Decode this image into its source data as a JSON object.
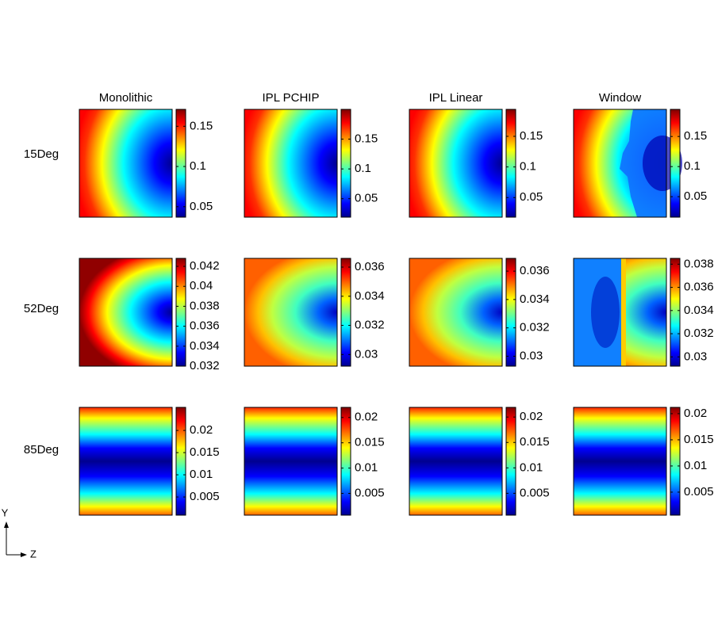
{
  "columns": [
    "Monolithic",
    "IPL PCHIP",
    "IPL Linear",
    "Window"
  ],
  "rows": [
    {
      "label": "15Deg",
      "colorbars": [
        {
          "clim": [
            0.037,
            0.171
          ],
          "ticks": [
            0.05,
            0.1,
            0.15
          ]
        },
        {
          "clim": [
            0.019,
            0.2
          ],
          "ticks": [
            0.05,
            0.1,
            0.15
          ]
        },
        {
          "clim": [
            0.018,
            0.194
          ],
          "ticks": [
            0.05,
            0.1,
            0.15
          ]
        },
        {
          "clim": [
            0.016,
            0.195
          ],
          "ticks": [
            0.05,
            0.1,
            0.15
          ]
        }
      ]
    },
    {
      "label": "52Deg",
      "colorbars": [
        {
          "clim": [
            0.032,
            0.0428
          ],
          "ticks": [
            0.032,
            0.034,
            0.036,
            0.038,
            0.04,
            0.042
          ]
        },
        {
          "clim": [
            0.0292,
            0.0366
          ],
          "ticks": [
            0.03,
            0.032,
            0.034,
            0.036
          ]
        },
        {
          "clim": [
            0.0293,
            0.0369
          ],
          "ticks": [
            0.03,
            0.032,
            0.034,
            0.036
          ]
        },
        {
          "clim": [
            0.0292,
            0.0385
          ],
          "ticks": [
            0.03,
            0.032,
            0.034,
            0.036,
            0.038
          ]
        }
      ]
    },
    {
      "label": "85Deg",
      "colorbars": [
        {
          "clim": [
            0.0009,
            0.0252
          ],
          "ticks": [
            0.005,
            0.01,
            0.015,
            0.02
          ]
        },
        {
          "clim": [
            0.0007,
            0.022
          ],
          "ticks": [
            0.005,
            0.01,
            0.015,
            0.02
          ]
        },
        {
          "clim": [
            0.0007,
            0.0219
          ],
          "ticks": [
            0.005,
            0.01,
            0.015,
            0.02
          ]
        },
        {
          "clim": [
            0.0006,
            0.0212
          ],
          "ticks": [
            0.005,
            0.01,
            0.015,
            0.02
          ]
        }
      ]
    }
  ],
  "axes": {
    "y": "Y",
    "z": "Z"
  }
}
